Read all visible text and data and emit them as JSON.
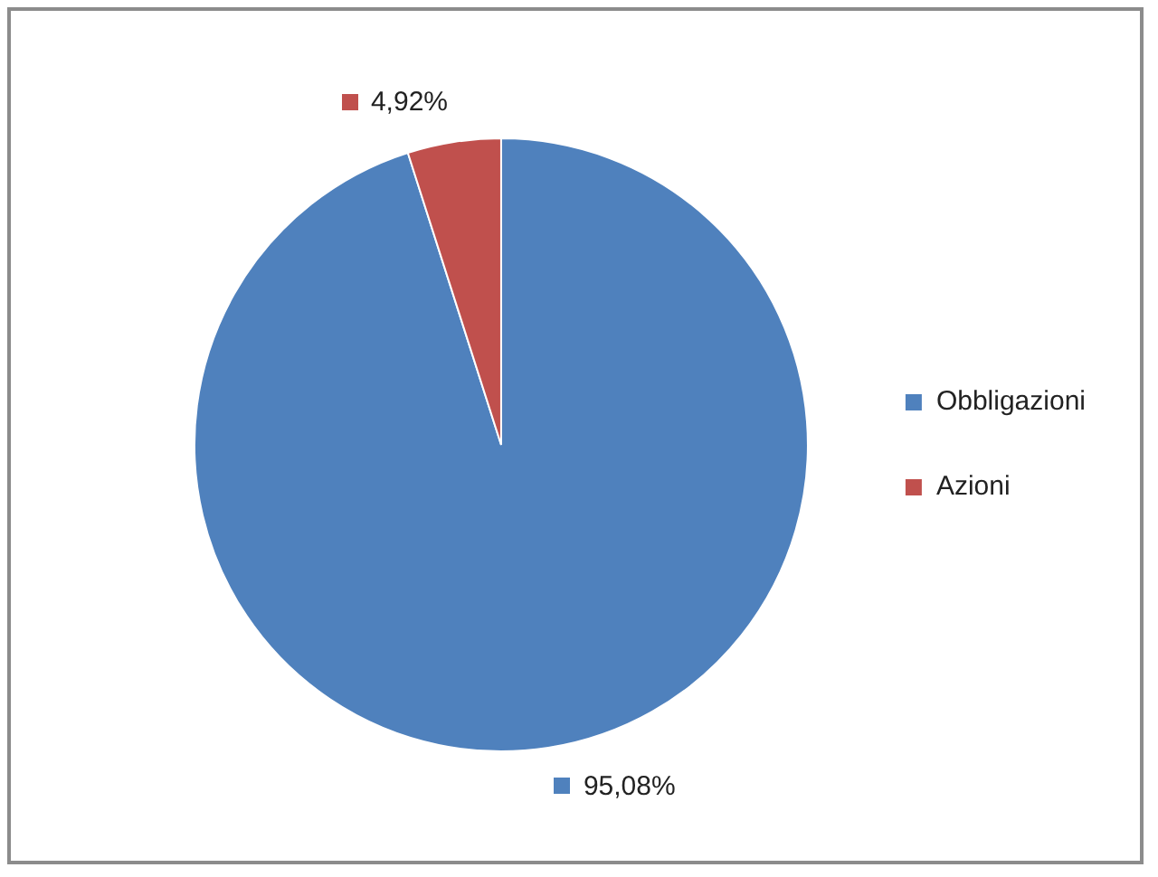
{
  "chart_data": {
    "type": "pie",
    "categories": [
      "Obbligazioni",
      "Azioni"
    ],
    "values": [
      95.08,
      4.92
    ],
    "colors": [
      "#4f81bd",
      "#c0504d"
    ],
    "value_labels": [
      "95,08%",
      "4,92%"
    ],
    "legend": "right"
  }
}
